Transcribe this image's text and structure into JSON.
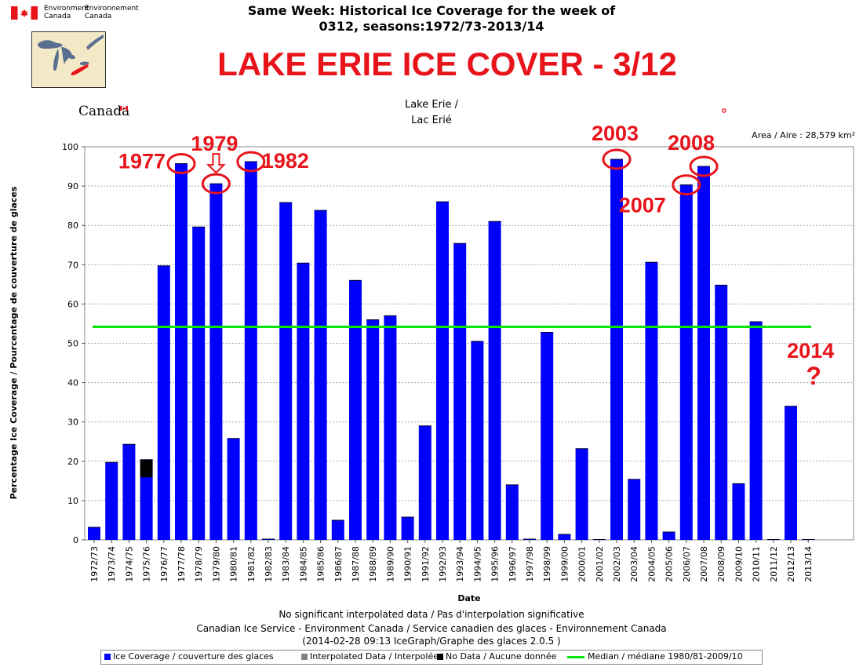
{
  "header": {
    "agency_en": "Environment",
    "agency_en_2": "Canada",
    "agency_fr": "Environnement",
    "agency_fr_2": "Canada",
    "title_line1": "Same Week: Historical Ice Coverage for the week of",
    "title_line2": "0312, seasons:1972/73-2013/14",
    "canada_wordmark": "Canada",
    "colors": {
      "flag_red": "#e8141b"
    }
  },
  "overlay_title": "LAKE ERIE ICE COVER - 3/12",
  "chart_heading": {
    "line1": "Lake Erie /",
    "line2": "Lac Erié",
    "area": "Area / Aire : 28,579 km²"
  },
  "chart_data": {
    "type": "bar",
    "categories": [
      "1972/73",
      "1973/74",
      "1974/75",
      "1975/76",
      "1976/77",
      "1977/78",
      "1978/79",
      "1979/80",
      "1980/81",
      "1981/82",
      "1982/83",
      "1983/84",
      "1984/85",
      "1985/86",
      "1986/87",
      "1987/88",
      "1988/89",
      "1989/90",
      "1990/91",
      "1991/92",
      "1992/93",
      "1993/94",
      "1994/95",
      "1995/96",
      "1996/97",
      "1997/98",
      "1998/99",
      "1999/00",
      "2000/01",
      "2001/02",
      "2002/03",
      "2003/04",
      "2004/05",
      "2005/06",
      "2006/07",
      "2007/08",
      "2008/09",
      "2009/10",
      "2010/11",
      "2011/12",
      "2012/13",
      "2013/14"
    ],
    "series": [
      {
        "name": "Ice Coverage / couverture des glaces",
        "color": "#0000ff",
        "values": [
          3.2,
          19.7,
          24.3,
          16.0,
          69.7,
          95.7,
          79.6,
          90.6,
          25.8,
          96.2,
          0.2,
          85.8,
          70.4,
          83.8,
          5.0,
          66.0,
          56.0,
          57.0,
          5.8,
          29.0,
          86.0,
          75.4,
          50.5,
          81.0,
          14.0,
          0.2,
          52.8,
          1.4,
          23.2,
          0.0,
          96.8,
          15.4,
          70.6,
          2.0,
          90.3,
          95.0,
          64.8,
          14.3,
          55.5,
          0.0,
          34.0,
          0.0
        ]
      },
      {
        "name": "Interpolated Data / Interpolée",
        "color": "#808080",
        "values": [
          0,
          0,
          0,
          0,
          0,
          0,
          0,
          0,
          0,
          0,
          0,
          0,
          0,
          0,
          0,
          0,
          0,
          0,
          0,
          0,
          0,
          0,
          0,
          0,
          0,
          0,
          0,
          0,
          0,
          0,
          0,
          0,
          0,
          0,
          0,
          0,
          0,
          0,
          0,
          0,
          0,
          0
        ]
      },
      {
        "name": "No Data / Aucune donnée",
        "color": "#000000",
        "values": [
          0,
          0,
          0,
          4.4,
          0,
          0,
          0,
          0,
          0,
          0,
          0,
          0,
          0,
          0,
          0,
          0,
          0,
          0,
          0,
          0,
          0,
          0,
          0,
          0,
          0,
          0,
          0,
          0,
          0,
          0,
          0,
          0,
          0,
          0,
          0,
          0,
          0,
          0,
          0,
          0,
          0,
          0
        ]
      }
    ],
    "median": {
      "name": "Median / médiane 1980/81-2009/10",
      "value": 54.2,
      "color": "#00e600"
    },
    "ylim": [
      0,
      100
    ],
    "yticks": [
      0,
      10,
      20,
      30,
      40,
      50,
      60,
      70,
      80,
      90,
      100
    ],
    "xlabel": "Date",
    "ylabel": "Percentage Ice Coverage / Pourcentage de couverture de glaces",
    "grid": true,
    "legend_placement": "bottom",
    "annotations": [
      {
        "text": "1977",
        "category": "1977/78"
      },
      {
        "text": "1979",
        "category": "1979/80"
      },
      {
        "text": "1982",
        "category": "1981/82"
      },
      {
        "text": "2003",
        "category": "2002/03"
      },
      {
        "text": "2007",
        "category": "2006/07"
      },
      {
        "text": "2008",
        "category": "2007/08"
      },
      {
        "text": "2014",
        "category": "2013/14"
      },
      {
        "text": "?",
        "category": "2013/14"
      }
    ],
    "annotation_color": "#e8141b"
  },
  "footer": {
    "line1": "No significant interpolated data / Pas d'interpolation significative",
    "line2": "Canadian Ice Service - Environment Canada / Service canadien des glaces - Environnement Canada",
    "line3": "(2014-02-28 09:13 IceGraph/Graphe des glaces 2.0.5 )"
  }
}
